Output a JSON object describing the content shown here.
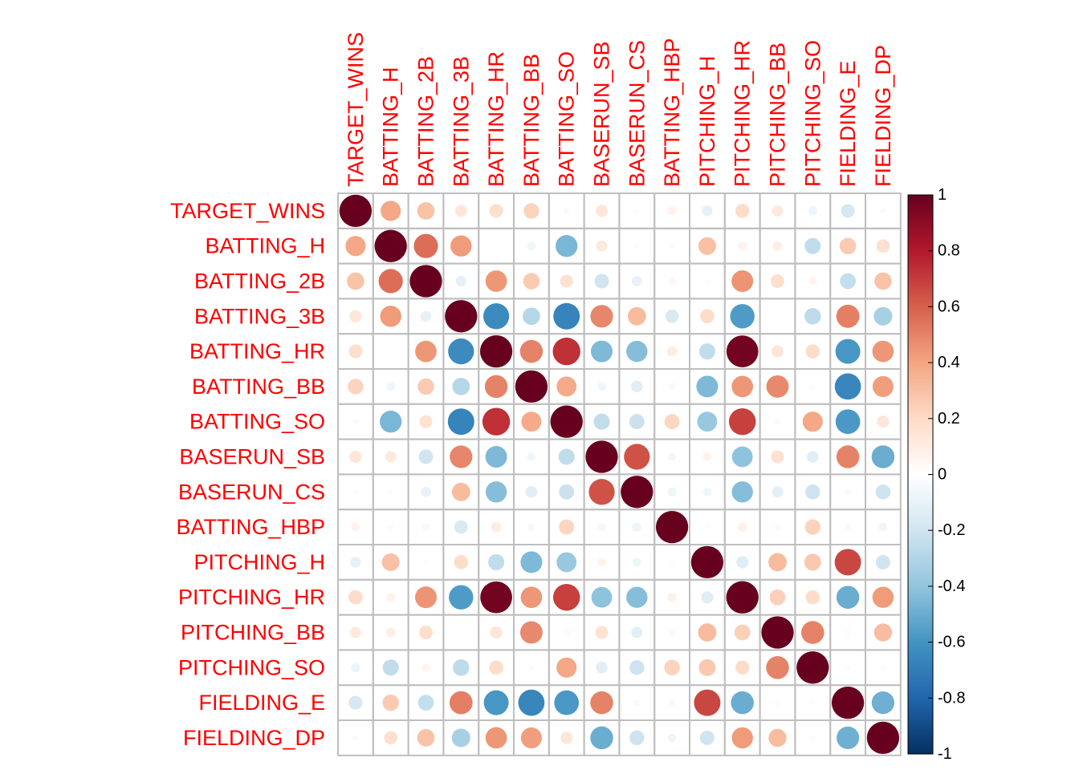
{
  "chart_data": {
    "type": "heatmap",
    "variables": [
      "TARGET_WINS",
      "BATTING_H",
      "BATTING_2B",
      "BATTING_3B",
      "BATTING_HR",
      "BATTING_BB",
      "BATTING_SO",
      "BASERUN_SB",
      "BASERUN_CS",
      "BATTING_HBP",
      "PITCHING_H",
      "PITCHING_HR",
      "PITCHING_BB",
      "PITCHING_SO",
      "FIELDING_E",
      "FIELDING_DP"
    ],
    "matrix": [
      [
        1.0,
        0.39,
        0.29,
        0.14,
        0.18,
        0.23,
        -0.03,
        0.14,
        0.02,
        0.07,
        -0.11,
        0.19,
        0.12,
        -0.08,
        -0.18,
        -0.03
      ],
      [
        0.39,
        1.0,
        0.56,
        0.43,
        0.0,
        -0.07,
        -0.46,
        0.12,
        0.02,
        -0.03,
        0.3,
        0.07,
        0.09,
        -0.25,
        0.26,
        0.17
      ],
      [
        0.29,
        0.56,
        1.0,
        -0.11,
        0.44,
        0.26,
        0.16,
        -0.2,
        -0.1,
        0.05,
        0.02,
        0.45,
        0.18,
        0.06,
        -0.24,
        0.29
      ],
      [
        0.14,
        0.43,
        -0.11,
        1.0,
        -0.64,
        -0.29,
        -0.67,
        0.49,
        0.32,
        -0.17,
        0.19,
        -0.57,
        0.0,
        -0.26,
        0.51,
        -0.33
      ],
      [
        0.18,
        0.0,
        0.44,
        -0.64,
        1.0,
        0.5,
        0.73,
        -0.45,
        -0.43,
        0.1,
        -0.25,
        0.97,
        0.14,
        0.19,
        -0.59,
        0.44
      ],
      [
        0.23,
        -0.07,
        0.26,
        -0.29,
        0.5,
        1.0,
        0.38,
        -0.07,
        -0.13,
        0.05,
        -0.45,
        0.44,
        0.48,
        0.03,
        -0.66,
        0.42
      ],
      [
        -0.03,
        -0.46,
        0.16,
        -0.67,
        0.73,
        0.38,
        1.0,
        -0.25,
        -0.22,
        0.22,
        -0.38,
        0.69,
        0.04,
        0.39,
        -0.58,
        0.14
      ],
      [
        0.14,
        0.12,
        -0.2,
        0.49,
        -0.45,
        -0.07,
        -0.25,
        1.0,
        0.64,
        -0.06,
        0.07,
        -0.41,
        0.16,
        -0.13,
        0.5,
        -0.5
      ],
      [
        0.02,
        0.02,
        -0.1,
        0.32,
        -0.43,
        -0.13,
        -0.22,
        0.64,
        1.0,
        -0.08,
        -0.07,
        -0.43,
        -0.12,
        -0.21,
        0.04,
        -0.21
      ],
      [
        0.07,
        -0.03,
        0.05,
        -0.17,
        0.1,
        0.05,
        0.22,
        -0.06,
        -0.08,
        1.0,
        0.02,
        0.08,
        0.04,
        0.23,
        -0.04,
        -0.07
      ],
      [
        -0.11,
        0.3,
        0.02,
        0.19,
        -0.25,
        -0.45,
        -0.38,
        0.07,
        -0.07,
        0.02,
        1.0,
        -0.14,
        0.32,
        0.27,
        0.67,
        -0.2
      ],
      [
        0.19,
        0.07,
        0.45,
        -0.57,
        0.97,
        0.44,
        0.69,
        -0.41,
        -0.43,
        0.08,
        -0.14,
        1.0,
        0.24,
        0.19,
        -0.5,
        0.43
      ],
      [
        0.12,
        0.09,
        0.18,
        0.0,
        0.14,
        0.48,
        0.04,
        0.16,
        -0.12,
        0.04,
        0.32,
        0.24,
        1.0,
        0.5,
        0.03,
        0.31
      ],
      [
        -0.08,
        -0.25,
        0.06,
        -0.26,
        0.19,
        0.03,
        0.39,
        -0.13,
        -0.21,
        0.23,
        0.27,
        0.19,
        0.5,
        1.0,
        0.02,
        0.03
      ],
      [
        -0.18,
        0.26,
        -0.24,
        0.51,
        -0.59,
        -0.66,
        -0.58,
        0.5,
        0.04,
        -0.04,
        0.67,
        -0.5,
        0.03,
        0.02,
        1.0,
        -0.49
      ],
      [
        -0.03,
        0.17,
        0.29,
        -0.33,
        0.44,
        0.42,
        0.14,
        -0.5,
        -0.21,
        -0.07,
        -0.2,
        0.43,
        0.31,
        0.03,
        -0.49,
        1.0
      ]
    ],
    "colorbar": {
      "range": [
        -1,
        1
      ],
      "ticks": [
        "1",
        "0.8",
        "0.6",
        "0.4",
        "0.2",
        "0",
        "-0.2",
        "-0.4",
        "-0.6",
        "-0.8",
        "-1"
      ],
      "colors": [
        "#67001F",
        "#B2182B",
        "#D6604D",
        "#F4A582",
        "#FDDBC7",
        "#FFFFFF",
        "#D1E5F0",
        "#92C5DE",
        "#4393C3",
        "#2166AC",
        "#053061"
      ]
    },
    "label_color": "#FF0000",
    "grid": true
  }
}
